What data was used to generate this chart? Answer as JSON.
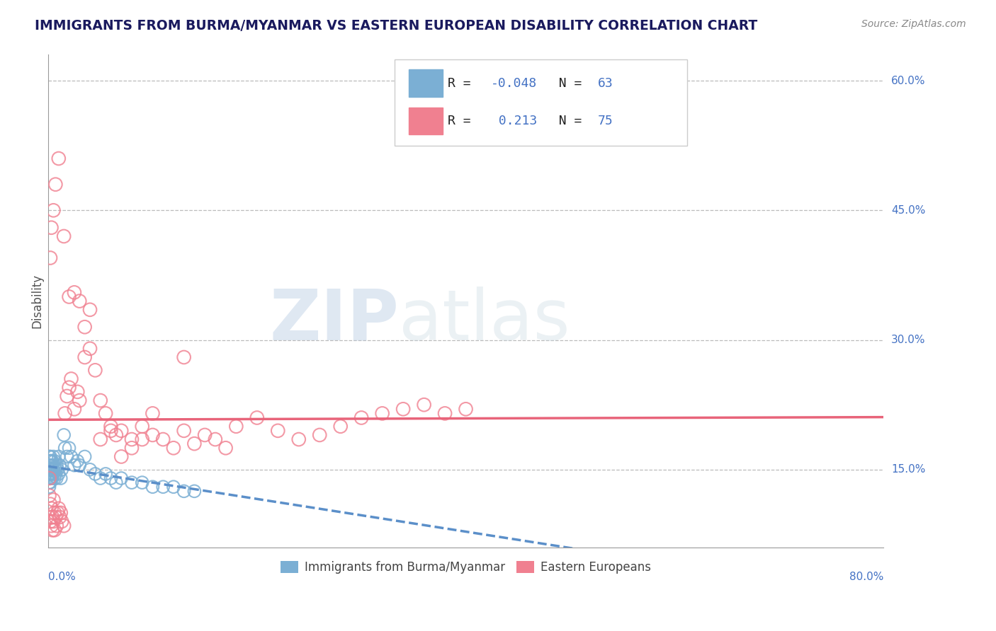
{
  "title": "IMMIGRANTS FROM BURMA/MYANMAR VS EASTERN EUROPEAN DISABILITY CORRELATION CHART",
  "source": "Source: ZipAtlas.com",
  "ylabel": "Disability",
  "xlim": [
    0.0,
    0.8
  ],
  "ylim": [
    0.06,
    0.63
  ],
  "series1_color": "#7bafd4",
  "series2_color": "#f08090",
  "line1_color": "#5b8fc9",
  "line2_color": "#e8647a",
  "watermark_color": "#c8d8e8",
  "background_color": "#ffffff",
  "title_color": "#1a1a5e",
  "axis_color": "#4472c4",
  "grid_color": "#bbbbbb",
  "blue_x": [
    0.001,
    0.001,
    0.001,
    0.001,
    0.001,
    0.001,
    0.001,
    0.001,
    0.002,
    0.002,
    0.002,
    0.002,
    0.002,
    0.002,
    0.002,
    0.003,
    0.003,
    0.003,
    0.003,
    0.003,
    0.004,
    0.004,
    0.004,
    0.004,
    0.005,
    0.005,
    0.005,
    0.006,
    0.006,
    0.006,
    0.007,
    0.007,
    0.008,
    0.008,
    0.009,
    0.01,
    0.01,
    0.011,
    0.012,
    0.013,
    0.015,
    0.016,
    0.018,
    0.02,
    0.022,
    0.025,
    0.028,
    0.03,
    0.035,
    0.04,
    0.045,
    0.05,
    0.055,
    0.06,
    0.065,
    0.07,
    0.08,
    0.09,
    0.1,
    0.11,
    0.12,
    0.13,
    0.14
  ],
  "blue_y": [
    0.145,
    0.15,
    0.155,
    0.14,
    0.135,
    0.16,
    0.165,
    0.13,
    0.155,
    0.16,
    0.145,
    0.14,
    0.15,
    0.135,
    0.165,
    0.155,
    0.145,
    0.16,
    0.14,
    0.15,
    0.16,
    0.145,
    0.155,
    0.14,
    0.165,
    0.15,
    0.145,
    0.155,
    0.16,
    0.14,
    0.15,
    0.145,
    0.155,
    0.14,
    0.15,
    0.165,
    0.145,
    0.155,
    0.14,
    0.15,
    0.19,
    0.175,
    0.165,
    0.175,
    0.165,
    0.155,
    0.16,
    0.155,
    0.165,
    0.15,
    0.145,
    0.14,
    0.145,
    0.14,
    0.135,
    0.14,
    0.135,
    0.135,
    0.13,
    0.13,
    0.13,
    0.125,
    0.125
  ],
  "pink_x": [
    0.001,
    0.001,
    0.002,
    0.002,
    0.003,
    0.003,
    0.004,
    0.004,
    0.005,
    0.005,
    0.006,
    0.006,
    0.007,
    0.008,
    0.009,
    0.01,
    0.011,
    0.012,
    0.013,
    0.015,
    0.016,
    0.018,
    0.02,
    0.022,
    0.025,
    0.028,
    0.03,
    0.035,
    0.04,
    0.045,
    0.05,
    0.055,
    0.06,
    0.065,
    0.07,
    0.08,
    0.09,
    0.1,
    0.11,
    0.12,
    0.13,
    0.14,
    0.15,
    0.16,
    0.17,
    0.18,
    0.2,
    0.22,
    0.24,
    0.26,
    0.28,
    0.3,
    0.32,
    0.34,
    0.36,
    0.38,
    0.4,
    0.002,
    0.003,
    0.005,
    0.007,
    0.01,
    0.015,
    0.02,
    0.025,
    0.03,
    0.035,
    0.04,
    0.05,
    0.06,
    0.07,
    0.08,
    0.09,
    0.1,
    0.13
  ],
  "pink_y": [
    0.14,
    0.12,
    0.11,
    0.09,
    0.105,
    0.085,
    0.095,
    0.08,
    0.115,
    0.09,
    0.1,
    0.08,
    0.095,
    0.085,
    0.1,
    0.105,
    0.095,
    0.1,
    0.09,
    0.085,
    0.215,
    0.235,
    0.245,
    0.255,
    0.22,
    0.24,
    0.23,
    0.28,
    0.29,
    0.265,
    0.23,
    0.215,
    0.2,
    0.19,
    0.195,
    0.185,
    0.2,
    0.215,
    0.185,
    0.175,
    0.195,
    0.18,
    0.19,
    0.185,
    0.175,
    0.2,
    0.21,
    0.195,
    0.185,
    0.19,
    0.2,
    0.21,
    0.215,
    0.22,
    0.225,
    0.215,
    0.22,
    0.395,
    0.43,
    0.45,
    0.48,
    0.51,
    0.42,
    0.35,
    0.355,
    0.345,
    0.315,
    0.335,
    0.185,
    0.195,
    0.165,
    0.175,
    0.185,
    0.19,
    0.28
  ]
}
